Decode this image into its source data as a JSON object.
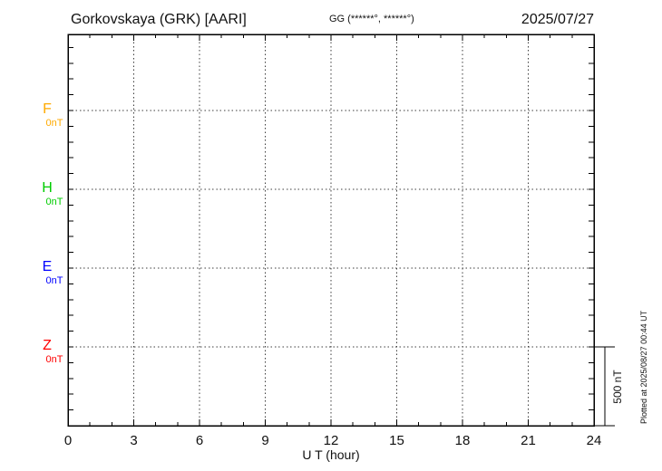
{
  "header": {
    "station_title": "Gorkovskaya (GRK)  [AARI]",
    "coords_label": "GG (******°, ******°)",
    "date": "2025/07/27"
  },
  "channels": [
    {
      "label": "F",
      "unit_label": "0nT",
      "color": "#ffaa00"
    },
    {
      "label": "H",
      "unit_label": "0nT",
      "color": "#00cc00"
    },
    {
      "label": "E",
      "unit_label": "0nT",
      "color": "#0000ff"
    },
    {
      "label": "Z",
      "unit_label": "0nT",
      "color": "#ff0000"
    }
  ],
  "x_axis": {
    "label": "U T (hour)",
    "tick_labels": [
      "0",
      "3",
      "6",
      "9",
      "12",
      "15",
      "18",
      "21",
      "24"
    ]
  },
  "scale_bar": {
    "label": "500 nT"
  },
  "footer_note": "Plotted at 2025/08/27 00:44 UT",
  "chart_data": {
    "type": "line",
    "title": "Gorkovskaya (GRK) [AARI] magnetogram",
    "date": "2025/07/27",
    "xlabel": "U T (hour)",
    "x_range": [
      0,
      24
    ],
    "x_ticks": [
      0,
      3,
      6,
      9,
      12,
      15,
      18,
      21,
      24
    ],
    "x_minor_tick_hours": 1,
    "y_scale_bar_nT": 500,
    "y_minor_tick_nT": 100,
    "grid": "dotted vertical lines every 3 hours; dotted horizontal baseline per channel",
    "legend_position": "left margin, one colored label per channel",
    "series": [
      {
        "name": "F",
        "baseline_nT": 0,
        "color": "#ffaa00",
        "values": []
      },
      {
        "name": "H",
        "baseline_nT": 0,
        "color": "#00cc00",
        "values": []
      },
      {
        "name": "E",
        "baseline_nT": 0,
        "color": "#0000ff",
        "values": []
      },
      {
        "name": "Z",
        "baseline_nT": 0,
        "color": "#ff0000",
        "values": []
      }
    ],
    "note": "No data traces are plotted for this day; only empty axes, baselines and grid are shown."
  }
}
